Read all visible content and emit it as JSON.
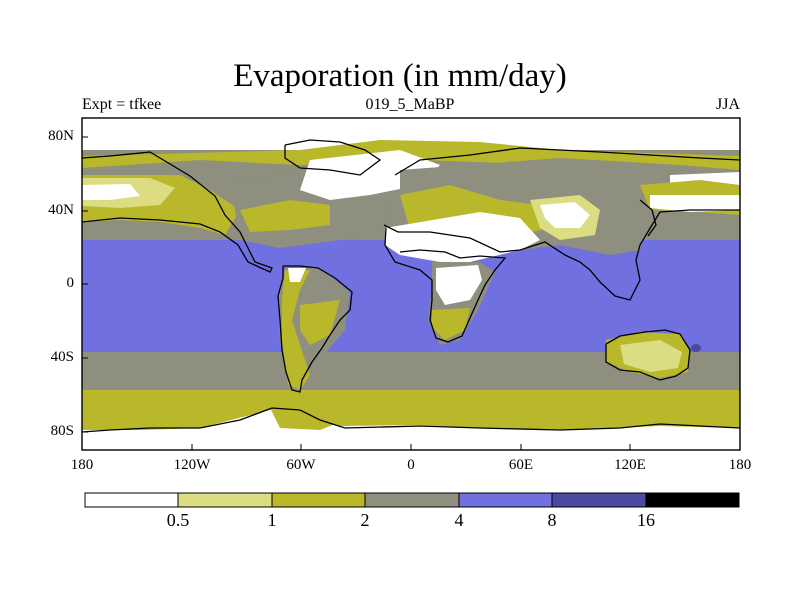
{
  "title": "Evaporation (in mm/day)",
  "subtitle": {
    "left": "Expt = tfkee",
    "center": "019_5_MaBP",
    "right": "JJA"
  },
  "axes": {
    "y_ticks": [
      "80N",
      "40N",
      "0",
      "40S",
      "80S"
    ],
    "x_ticks": [
      "180",
      "120W",
      "60W",
      "0",
      "60E",
      "120E",
      "180"
    ],
    "lat_range": [
      -90,
      90
    ],
    "lon_range": [
      -180,
      180
    ]
  },
  "colorbar": {
    "levels": [
      "0.5",
      "1",
      "2",
      "4",
      "8",
      "16"
    ],
    "colors": [
      "#ffffff",
      "#dcdc82",
      "#b8b82a",
      "#8f8f80",
      "#7070e0",
      "#4a4aa0",
      "#000000"
    ]
  },
  "map_colors": {
    "white": "#ffffff",
    "light_yellow": "#dcdc82",
    "olive": "#b8b82a",
    "gray": "#8f8f80",
    "blue": "#7070e0",
    "dark_blue": "#4a4aa0",
    "coastline": "#000000"
  }
}
